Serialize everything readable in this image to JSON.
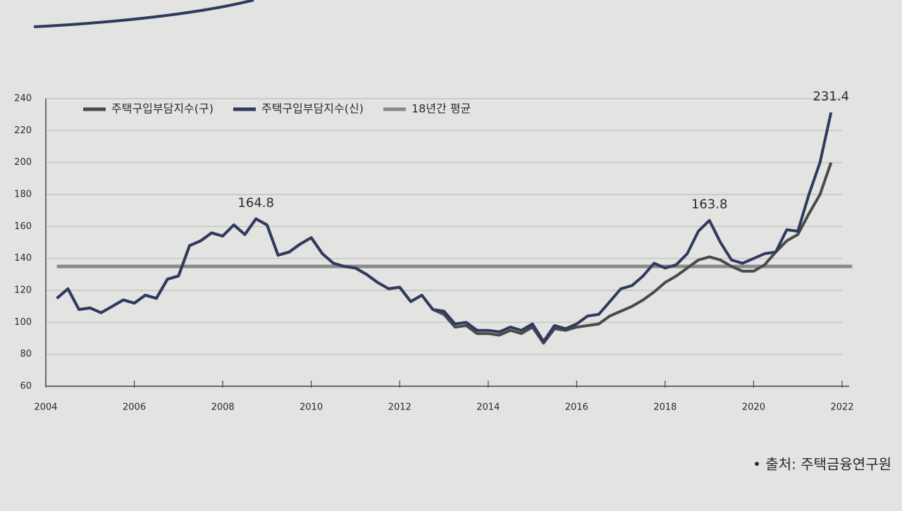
{
  "chart_data": {
    "type": "line",
    "x": [
      2004.25,
      2004.5,
      2004.75,
      2005,
      2005.25,
      2005.5,
      2005.75,
      2006,
      2006.25,
      2006.5,
      2006.75,
      2007,
      2007.25,
      2007.5,
      2007.75,
      2008,
      2008.25,
      2008.5,
      2008.75,
      2009,
      2009.25,
      2009.5,
      2009.75,
      2010,
      2010.25,
      2010.5,
      2010.75,
      2011,
      2011.25,
      2011.5,
      2011.75,
      2012,
      2012.25,
      2012.5,
      2012.75,
      2013,
      2013.25,
      2013.5,
      2013.75,
      2014,
      2014.25,
      2014.5,
      2014.75,
      2015,
      2015.25,
      2015.5,
      2015.75,
      2016,
      2016.25,
      2016.5,
      2016.75,
      2017,
      2017.25,
      2017.5,
      2017.75,
      2018,
      2018.25,
      2018.5,
      2018.75,
      2019,
      2019.25,
      2019.5,
      2019.75,
      2020,
      2020.25,
      2020.5,
      2020.75,
      2021,
      2021.25,
      2021.5,
      2021.75
    ],
    "series": [
      {
        "name": "주택구입부담지수(구)",
        "color": "#4a4a4c",
        "values": [
          115,
          121,
          108,
          109,
          106,
          110,
          114,
          112,
          117,
          115,
          127,
          129,
          148,
          151,
          156,
          154,
          161,
          155,
          164.8,
          161,
          142,
          144,
          149,
          153,
          143,
          137,
          135,
          134,
          130,
          125,
          121,
          122,
          113,
          117,
          108,
          105,
          97,
          98,
          93,
          93,
          92,
          95,
          93,
          97,
          87,
          96,
          95,
          97,
          98,
          99,
          104,
          107,
          110,
          114,
          119,
          125,
          129,
          134,
          139,
          141,
          139,
          135,
          132,
          132,
          136,
          144,
          151,
          155,
          168,
          180,
          200
        ]
      },
      {
        "name": "주택구입부담지수(신)",
        "color": "#2f3a5e",
        "values": [
          115,
          121,
          108,
          109,
          106,
          110,
          114,
          112,
          117,
          115,
          127,
          129,
          148,
          151,
          156,
          154,
          161,
          155,
          164.8,
          161,
          142,
          144,
          149,
          153,
          143,
          137,
          135,
          134,
          130,
          125,
          121,
          122,
          113,
          117,
          108,
          107,
          99,
          100,
          95,
          95,
          94,
          97,
          95,
          99,
          88,
          98,
          96,
          99,
          104,
          105,
          113,
          121,
          123,
          129,
          137,
          134,
          136,
          143,
          157,
          163.8,
          150,
          139,
          137,
          140,
          143,
          144,
          158,
          157,
          180,
          200,
          231.4
        ]
      }
    ],
    "reference_line": {
      "name": "18년간 평균",
      "value": 135,
      "color": "#8a8a8a"
    },
    "annotations": [
      {
        "label": "164.8",
        "x": 2008.75
      },
      {
        "label": "163.8",
        "x": 2019
      },
      {
        "label": "231.4",
        "x": 2021.75
      }
    ],
    "xlim": [
      2004,
      2022
    ],
    "xticks": [
      2004,
      2006,
      2008,
      2010,
      2012,
      2014,
      2016,
      2018,
      2020,
      2022
    ],
    "ylim": [
      60,
      240
    ],
    "yticks": [
      60,
      80,
      100,
      120,
      140,
      160,
      180,
      200,
      220,
      240
    ],
    "grid": true,
    "source": "• 출처: 주택금융연구원"
  }
}
